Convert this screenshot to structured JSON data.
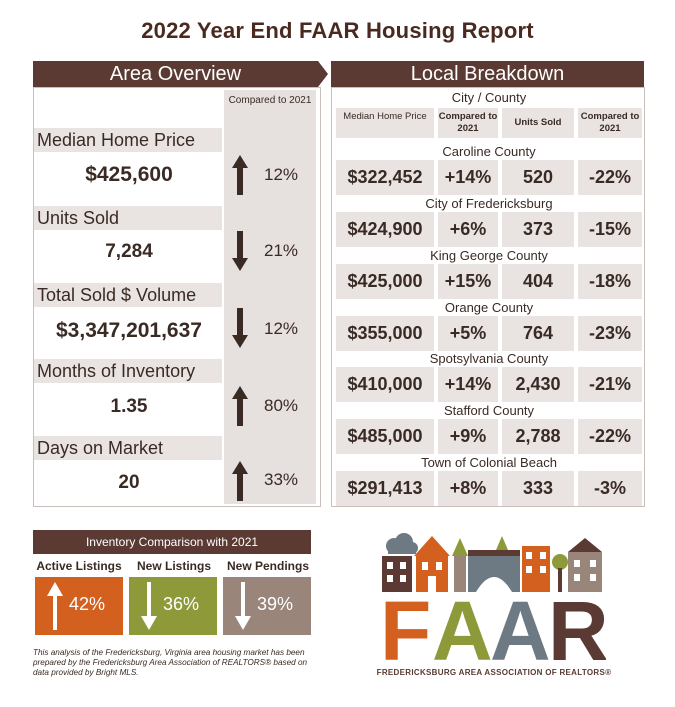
{
  "title": "2022 Year End FAAR Housing Report",
  "area": {
    "header": "Area Overview",
    "compared_label": "Compared to 2021",
    "metrics": [
      {
        "label": "Median Home Price",
        "value": "$425,600",
        "direction": "up",
        "change": "12%"
      },
      {
        "label": "Units Sold",
        "value": "7,284",
        "direction": "down",
        "change": "21%"
      },
      {
        "label": "Total Sold $ Volume",
        "value": "$3,347,201,637",
        "direction": "down",
        "change": "12%"
      },
      {
        "label": "Months of Inventory",
        "value": "1.35",
        "direction": "up",
        "change": "80%"
      },
      {
        "label": "Days on Market",
        "value": "20",
        "direction": "up",
        "change": "33%"
      }
    ]
  },
  "local": {
    "header": "Local Breakdown",
    "subheader": "City / County",
    "columns": [
      "Median Home Price",
      "Compared to 2021",
      "Units Sold",
      "Compared to 2021"
    ],
    "rows": [
      {
        "name": "Caroline County",
        "price": "$322,452",
        "price_change": "+14%",
        "units": "520",
        "units_change": "-22%"
      },
      {
        "name": "City of Fredericksburg",
        "price": "$424,900",
        "price_change": "+6%",
        "units": "373",
        "units_change": "-15%"
      },
      {
        "name": "King George County",
        "price": "$425,000",
        "price_change": "+15%",
        "units": "404",
        "units_change": "-18%"
      },
      {
        "name": "Orange County",
        "price": "$355,000",
        "price_change": "+5%",
        "units": "764",
        "units_change": "-23%"
      },
      {
        "name": "Spotsylvania County",
        "price": "$410,000",
        "price_change": "+14%",
        "units": "2,430",
        "units_change": "-21%"
      },
      {
        "name": "Stafford County",
        "price": "$485,000",
        "price_change": "+9%",
        "units": "2,788",
        "units_change": "-22%"
      },
      {
        "name": "Town of Colonial Beach",
        "price": "$291,413",
        "price_change": "+8%",
        "units": "333",
        "units_change": "-3%"
      }
    ]
  },
  "inventory": {
    "header": "Inventory Comparison with 2021",
    "items": [
      {
        "label": "Active Listings",
        "direction": "up",
        "value": "42%",
        "color": "#d4601f"
      },
      {
        "label": "New Listings",
        "direction": "down",
        "value": "36%",
        "color": "#8e9a3a"
      },
      {
        "label": "New Pendings",
        "direction": "down",
        "value": "39%",
        "color": "#9a857b"
      }
    ]
  },
  "note": "This analysis of the Fredericksburg, Virginia area housing market has been prepared by the Fredericksburg Area Association of REALTORS® based on data provided by Bright MLS.",
  "logo": {
    "letters": "FAAR",
    "tagline": "FREDERICKSBURG AREA ASSOCIATION OF REALTORS®"
  },
  "colors": {
    "brown": "#5a3a32",
    "orange": "#d4601f",
    "olive": "#8e9a3a",
    "taupe": "#9a857b",
    "slate": "#6d7a83"
  }
}
